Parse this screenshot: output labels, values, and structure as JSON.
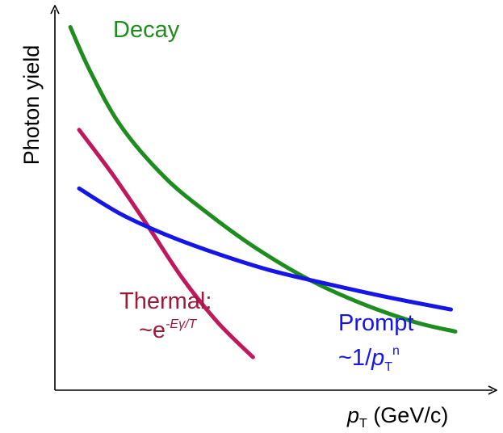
{
  "chart_data": {
    "type": "line",
    "title": "",
    "xlabel": {
      "italic": "p",
      "sub": "T",
      "rest": " (GeV/c)"
    },
    "ylabel": "Photon yield",
    "grid": false,
    "legend": "none",
    "series": [
      {
        "name": "Decay",
        "color": "#1e8c1e",
        "points": [
          [
            0.35,
            9.9
          ],
          [
            0.8,
            8.7
          ],
          [
            1.5,
            7.2
          ],
          [
            2.5,
            5.8
          ],
          [
            3.5,
            4.8
          ],
          [
            4.6,
            3.85
          ],
          [
            5.8,
            3.0
          ],
          [
            7.0,
            2.35
          ],
          [
            8.2,
            1.85
          ],
          [
            9.1,
            1.6
          ]
        ]
      },
      {
        "name": "Thermal",
        "color": "#c0185c",
        "label_lines": [
          "Thermal:",
          "~e"
        ],
        "label_exp": "-Eγ/T",
        "points": [
          [
            0.55,
            7.1
          ],
          [
            1.3,
            5.9
          ],
          [
            2.1,
            4.5
          ],
          [
            2.9,
            3.05
          ],
          [
            3.7,
            1.85
          ],
          [
            4.5,
            0.9
          ]
        ]
      },
      {
        "name": "Prompt",
        "color": "#1515e8",
        "label_lines": [
          "Prompt",
          "~1/"
        ],
        "label_tail": {
          "italic": "p",
          "sub": "T",
          "sup": "n"
        },
        "points": [
          [
            0.55,
            5.5
          ],
          [
            1.5,
            4.8
          ],
          [
            2.5,
            4.25
          ],
          [
            3.5,
            3.8
          ],
          [
            4.8,
            3.3
          ],
          [
            6.0,
            2.95
          ],
          [
            7.5,
            2.55
          ],
          [
            9.0,
            2.2
          ]
        ]
      }
    ]
  }
}
